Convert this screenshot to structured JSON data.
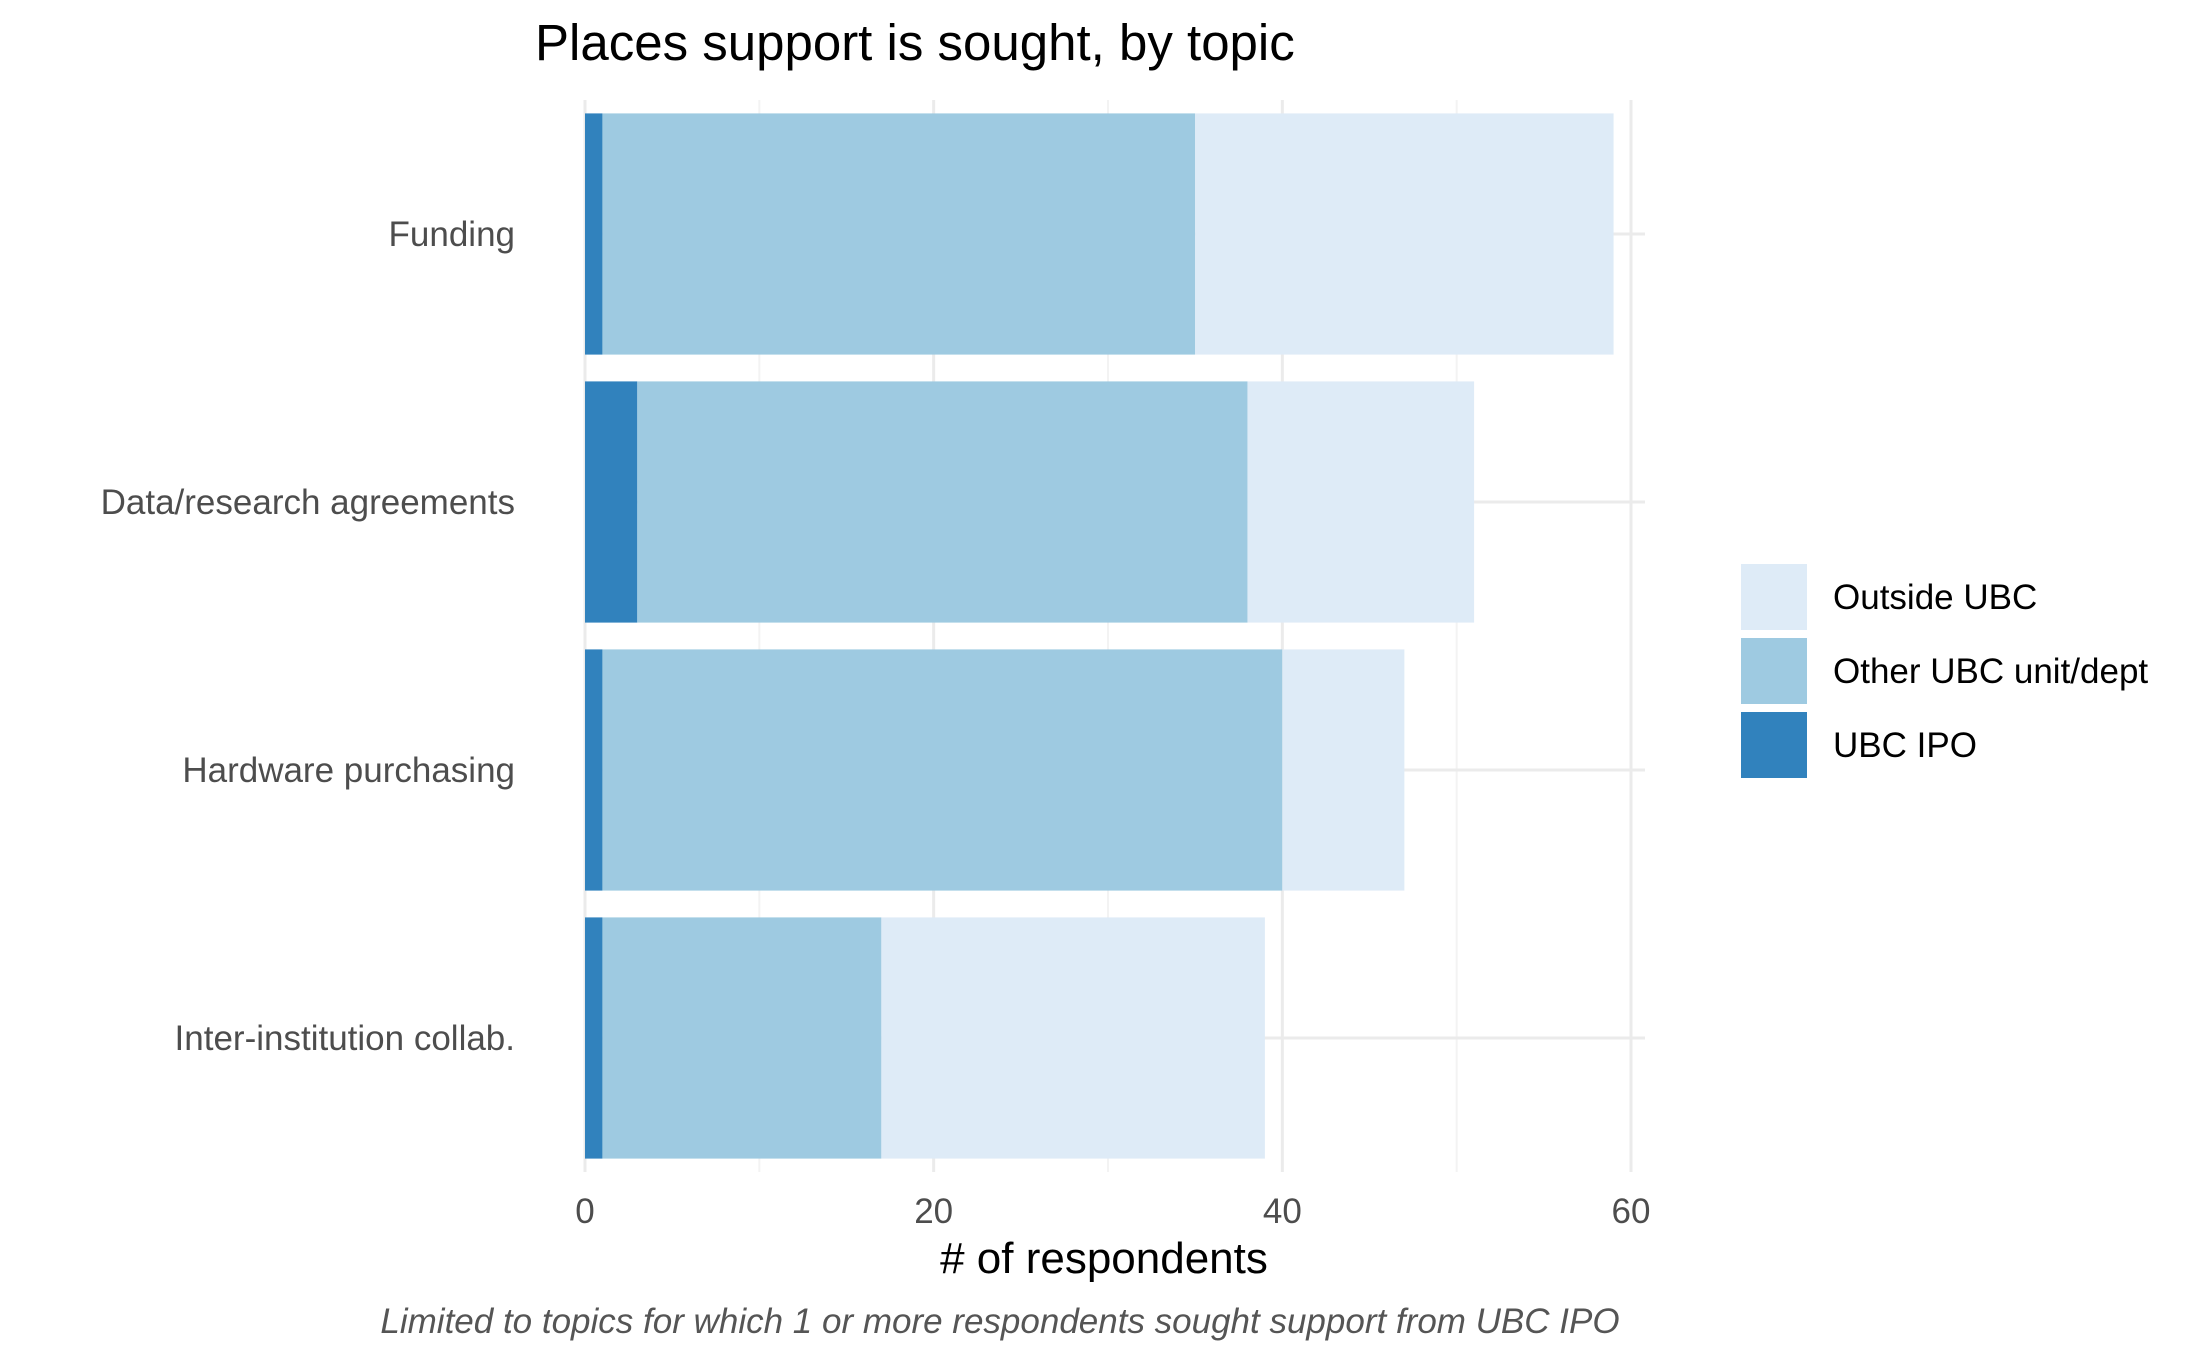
{
  "chart_data": {
    "type": "bar",
    "orientation": "horizontal",
    "stacked": true,
    "title": "Places support is sought, by topic",
    "xlabel": "# of respondents",
    "ylabel": "",
    "caption": "Limited to topics for which 1 or more respondents sought support from UBC IPO",
    "xlim": [
      0,
      60
    ],
    "xticks": [
      0,
      20,
      40,
      60
    ],
    "categories": [
      "Funding",
      "Data/research agreements",
      "Hardware purchasing",
      "Inter-institution collab."
    ],
    "series": [
      {
        "name": "UBC IPO",
        "color": "#3182bd",
        "values": [
          1,
          3,
          1,
          1
        ]
      },
      {
        "name": "Other UBC unit/dept",
        "color": "#9ecae1",
        "values": [
          34,
          35,
          39,
          16
        ]
      },
      {
        "name": "Outside UBC",
        "color": "#deebf7",
        "values": [
          24,
          13,
          7,
          22
        ]
      }
    ],
    "legend_order": [
      "Outside UBC",
      "Other UBC unit/dept",
      "UBC IPO"
    ],
    "legend_position": "right",
    "grid": true
  }
}
